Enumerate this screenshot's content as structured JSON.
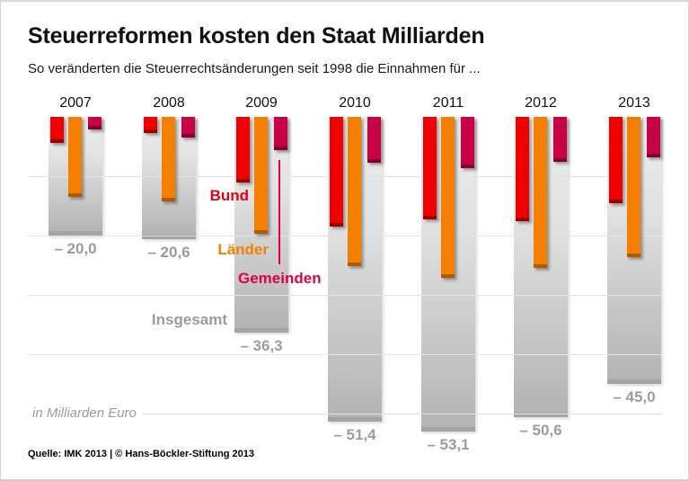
{
  "page": {
    "title": "Steuerreformen kosten den Staat Milliarden",
    "subtitle": "So veränderten die Steuerrechtsänderungen seit 1998 die Einnahmen für ...",
    "unit_note": "in Milliarden Euro",
    "source": "Quelle: IMK 2013 | © Hans-Böckler-Stiftung 2013"
  },
  "colors": {
    "bund": "#ee0000",
    "bund_cap": "#9d0000",
    "laender": "#f57f00",
    "laender_cap": "#b05a00",
    "gemeinden": "#c80046",
    "gemeinden_cap": "#85002e",
    "label_bund": "#e60012",
    "label_laender": "#f57f00",
    "label_gemeinden": "#e00048",
    "label_gray": "#9c9c9c",
    "gridline": "#e4e4e4"
  },
  "chart_data": {
    "type": "bar",
    "title": "Steuerreformen kosten den Staat Milliarden",
    "subtitle": "So veränderten die Steuerrechtsänderungen seit 1998 die Einnahmen für ...",
    "unit": "Milliarden Euro",
    "categories": [
      "2007",
      "2008",
      "2009",
      "2010",
      "2011",
      "2012",
      "2013"
    ],
    "series": [
      {
        "name": "Bund",
        "values": [
          -4.4,
          -2.8,
          -11.0,
          -18.5,
          -17.3,
          -17.6,
          -14.5
        ]
      },
      {
        "name": "Länder",
        "values": [
          -13.5,
          -14.3,
          -19.7,
          -25.1,
          -27.1,
          -25.5,
          -23.7
        ]
      },
      {
        "name": "Gemeinden",
        "values": [
          -2.1,
          -3.5,
          -5.6,
          -7.8,
          -8.7,
          -7.5,
          -6.8
        ]
      },
      {
        "name": "Insgesamt",
        "values": [
          -20.0,
          -20.6,
          -36.3,
          -51.4,
          -53.1,
          -50.6,
          -45.0
        ],
        "display_labels": [
          "– 20,0",
          "– 20,6",
          "– 36,3",
          "– 51,4",
          "– 53,1",
          "– 50,6",
          "– 45,0"
        ]
      }
    ],
    "ylim": [
      -55,
      0
    ],
    "gridline_step": 10,
    "grid": true,
    "legend_position": "inline-annotations"
  }
}
